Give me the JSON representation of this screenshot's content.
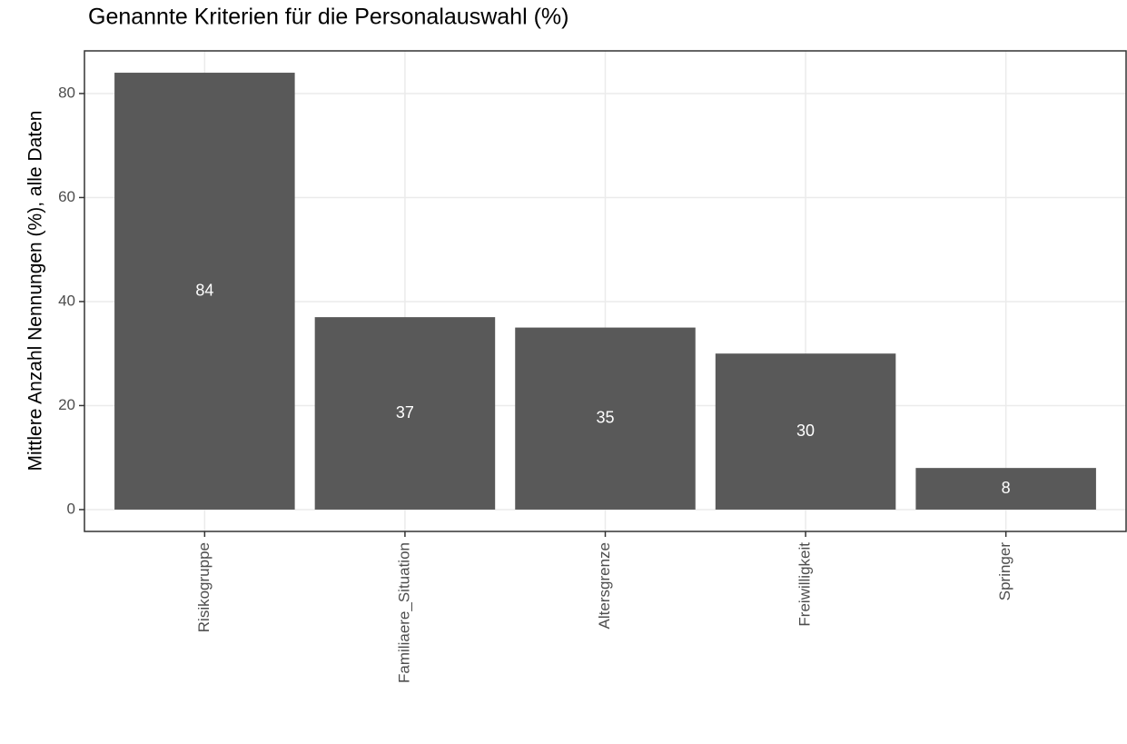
{
  "chart_data": {
    "type": "bar",
    "title": "Genannte Kriterien für die Personalauswahl (%)",
    "y_label": "Mittlere Anzahl Nennungen (%), alle Daten",
    "categories": [
      "Risikogruppe",
      "Familiaere_Situation",
      "Altersgrenze",
      "Freiwilligkeit",
      "Springer"
    ],
    "values": [
      84,
      37,
      35,
      30,
      8
    ],
    "color": "#595959",
    "ylim": [
      -4.2,
      88.2
    ],
    "yticks": [
      0,
      20,
      40,
      60,
      80
    ],
    "grid": true
  }
}
